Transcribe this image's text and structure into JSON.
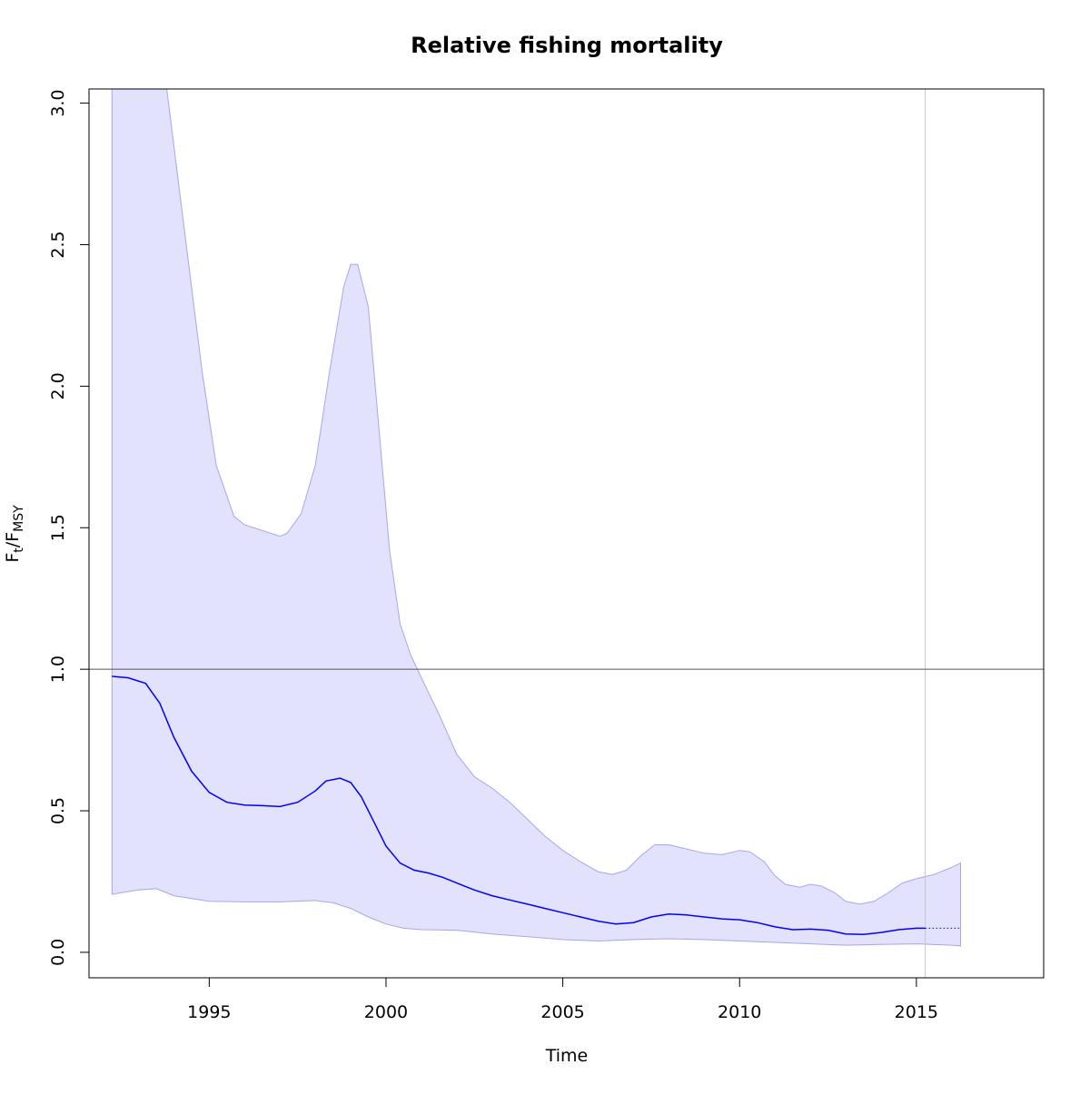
{
  "chart_data": {
    "type": "area",
    "title": "Relative fishing mortality",
    "xlabel": "Time",
    "ylabel_main": "F",
    "ylabel_sub1": "t",
    "ylabel_sep": "/F",
    "ylabel_sub2": "MSY",
    "xlim": [
      1991.6,
      2018.6
    ],
    "ylim": [
      -0.09,
      3.05
    ],
    "x_ticks": [
      1995,
      2000,
      2005,
      2010,
      2015
    ],
    "y_ticks": [
      0.0,
      0.5,
      1.0,
      1.5,
      2.0,
      2.5,
      3.0
    ],
    "y_tick_labels": [
      "0.0",
      "0.5",
      "1.0",
      "1.5",
      "2.0",
      "2.5",
      "3.0"
    ],
    "reference_hline": 1.0,
    "reference_vline": 2015.25,
    "colors": {
      "estimate": "#0000ff",
      "band_fill": "#e2e2fc",
      "band_edge": "#a6a6ee",
      "hline": "#555555",
      "vline": "#c8c8c8",
      "frame": "#000000"
    },
    "series": [
      {
        "role": "upper_ci",
        "x": [
          1992.25,
          1993.0,
          1993.8,
          1994.3,
          1994.8,
          1995.2,
          1995.7,
          1996.0,
          1996.5,
          1997.0,
          1997.2,
          1997.6,
          1998.0,
          1998.4,
          1998.8,
          1999.0,
          1999.2,
          1999.5,
          1999.8,
          2000.1,
          2000.4,
          2000.7,
          2001.0,
          2001.5,
          2002.0,
          2002.5,
          2003.0,
          2003.5,
          2004.0,
          2004.5,
          2005.0,
          2005.5,
          2006.0,
          2006.4,
          2006.8,
          2007.2,
          2007.6,
          2008.0,
          2008.5,
          2009.0,
          2009.5,
          2010.0,
          2010.3,
          2010.7,
          2011.0,
          2011.3,
          2011.7,
          2012.0,
          2012.3,
          2012.7,
          2013.0,
          2013.4,
          2013.8,
          2014.2,
          2014.6,
          2015.0,
          2015.5,
          2016.0,
          2016.25
        ],
        "values": [
          3.05,
          3.05,
          3.05,
          2.55,
          2.05,
          1.72,
          1.54,
          1.51,
          1.49,
          1.47,
          1.48,
          1.55,
          1.72,
          2.05,
          2.35,
          2.43,
          2.43,
          2.28,
          1.85,
          1.42,
          1.16,
          1.05,
          0.97,
          0.84,
          0.7,
          0.62,
          0.58,
          0.53,
          0.47,
          0.41,
          0.36,
          0.32,
          0.285,
          0.275,
          0.29,
          0.34,
          0.38,
          0.38,
          0.365,
          0.35,
          0.345,
          0.36,
          0.355,
          0.32,
          0.27,
          0.24,
          0.23,
          0.24,
          0.235,
          0.21,
          0.18,
          0.17,
          0.18,
          0.21,
          0.245,
          0.26,
          0.275,
          0.3,
          0.315
        ]
      },
      {
        "role": "lower_ci",
        "x": [
          1992.25,
          1993.0,
          1993.5,
          1994.0,
          1995.0,
          1996.0,
          1997.0,
          1998.0,
          1998.5,
          1999.0,
          1999.5,
          2000.0,
          2000.5,
          2001.0,
          2002.0,
          2003.0,
          2004.0,
          2005.0,
          2006.0,
          2007.0,
          2008.0,
          2009.0,
          2010.0,
          2011.0,
          2012.0,
          2013.0,
          2014.0,
          2015.0,
          2016.0,
          2016.25
        ],
        "values": [
          0.205,
          0.22,
          0.225,
          0.2,
          0.18,
          0.178,
          0.178,
          0.183,
          0.175,
          0.155,
          0.125,
          0.1,
          0.085,
          0.08,
          0.078,
          0.065,
          0.055,
          0.045,
          0.04,
          0.045,
          0.048,
          0.045,
          0.04,
          0.035,
          0.03,
          0.025,
          0.028,
          0.03,
          0.025,
          0.023
        ]
      },
      {
        "role": "estimate",
        "x": [
          1992.25,
          1992.7,
          1993.2,
          1993.6,
          1994.0,
          1994.5,
          1995.0,
          1995.5,
          1996.0,
          1996.5,
          1997.0,
          1997.5,
          1998.0,
          1998.3,
          1998.7,
          1999.0,
          1999.3,
          1999.7,
          2000.0,
          2000.4,
          2000.8,
          2001.2,
          2001.6,
          2002.0,
          2002.5,
          2003.0,
          2003.5,
          2004.0,
          2004.5,
          2005.0,
          2005.5,
          2006.0,
          2006.5,
          2007.0,
          2007.5,
          2008.0,
          2008.5,
          2009.0,
          2009.5,
          2010.0,
          2010.5,
          2011.0,
          2011.5,
          2012.0,
          2012.5,
          2013.0,
          2013.5,
          2014.0,
          2014.5,
          2015.0,
          2015.25
        ],
        "values": [
          0.975,
          0.97,
          0.95,
          0.88,
          0.76,
          0.64,
          0.565,
          0.53,
          0.52,
          0.518,
          0.515,
          0.53,
          0.57,
          0.605,
          0.615,
          0.6,
          0.55,
          0.45,
          0.375,
          0.315,
          0.29,
          0.28,
          0.265,
          0.245,
          0.22,
          0.2,
          0.185,
          0.17,
          0.155,
          0.14,
          0.125,
          0.11,
          0.1,
          0.105,
          0.125,
          0.135,
          0.132,
          0.125,
          0.118,
          0.115,
          0.105,
          0.09,
          0.08,
          0.082,
          0.078,
          0.065,
          0.063,
          0.07,
          0.08,
          0.085,
          0.085
        ]
      },
      {
        "role": "projection",
        "x": [
          2015.25,
          2016.25
        ],
        "values": [
          0.085,
          0.085
        ]
      }
    ]
  }
}
